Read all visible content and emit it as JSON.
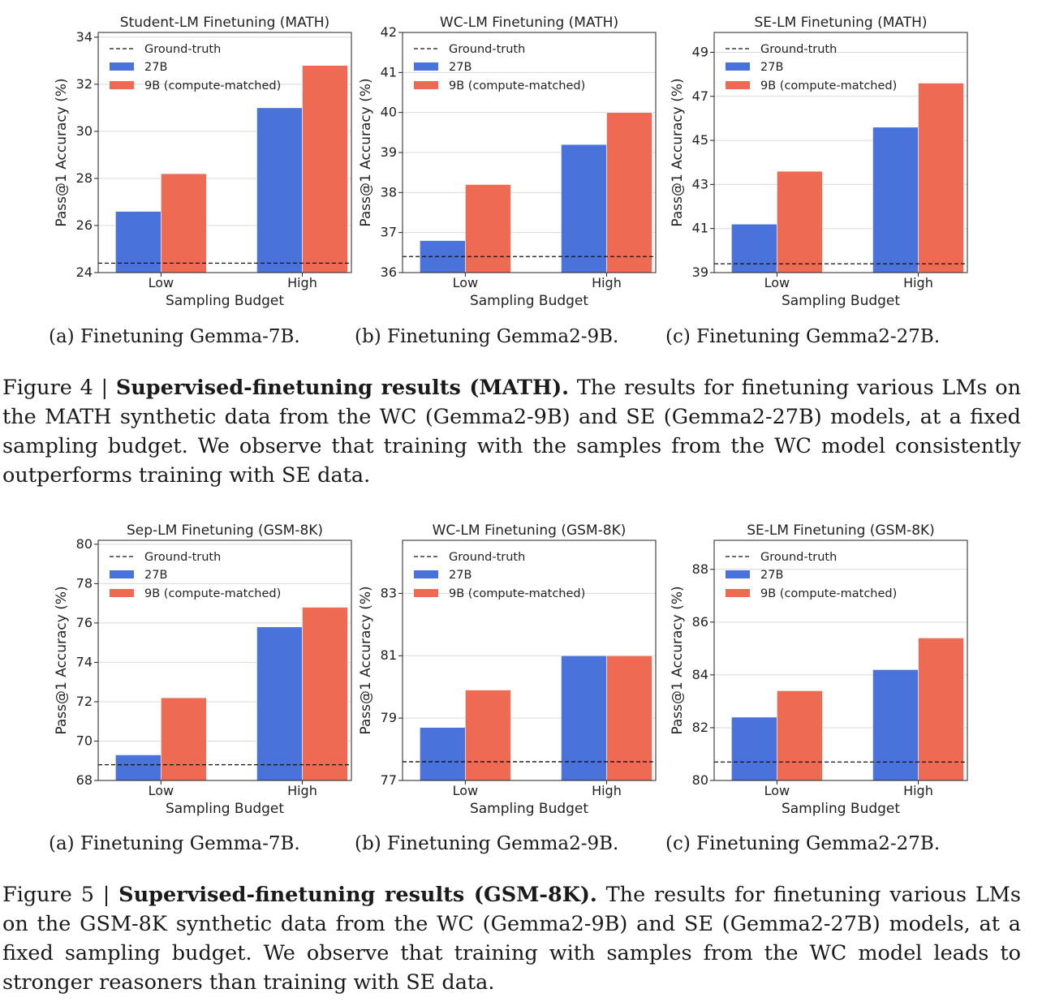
{
  "colors": {
    "series_27b": "#4a72db",
    "series_9b": "#ee6a52",
    "grid": "#d9d9d9",
    "ground_truth": "#111111"
  },
  "legend": {
    "ground_truth": "Ground-truth",
    "s27b": "27B",
    "s9b": "9B (compute-matched)"
  },
  "figures": [
    {
      "caption": {
        "prefix": "Figure 4 | ",
        "bold": "Supervised-finetuning results (MATH).",
        "rest": " The results for finetuning various LMs on the MATH synthetic data from the WC (Gemma2-9B) and SE (Gemma2-27B) models, at a fixed sampling budget.  We observe that training with the samples from the WC model consistently outperforms training with SE data."
      },
      "subcaptions": [
        "(a) Finetuning Gemma-7B.",
        "(b) Finetuning Gemma2-9B.",
        "(c) Finetuning Gemma2-27B."
      ]
    },
    {
      "caption": {
        "prefix": "Figure 5 | ",
        "bold": "Supervised-finetuning results (GSM-8K).",
        "rest": " The results for finetuning various LMs on the GSM-8K synthetic data from the WC (Gemma2-9B) and SE (Gemma2-27B) models, at a fixed sampling budget. We observe that training with samples from the WC model leads to stronger reasoners than training with SE data."
      },
      "subcaptions": [
        "(a) Finetuning Gemma-7B.",
        "(b) Finetuning Gemma2-9B.",
        "(c) Finetuning Gemma2-27B."
      ]
    }
  ],
  "chart_data": [
    {
      "type": "bar",
      "title": "Student-LM Finetuning (MATH)",
      "xlabel": "Sampling Budget",
      "ylabel": "Pass@1 Accuracy (%)",
      "categories": [
        "Low",
        "High"
      ],
      "ylim": [
        24,
        34.2
      ],
      "yticks": [
        24,
        26,
        28,
        30,
        32,
        34
      ],
      "ground_truth": 24.4,
      "series": [
        {
          "name": "27B",
          "values": [
            26.6,
            31.0
          ]
        },
        {
          "name": "9B (compute-matched)",
          "values": [
            28.2,
            32.8
          ]
        }
      ],
      "grid": true,
      "legend": "top-left"
    },
    {
      "type": "bar",
      "title": "WC-LM Finetuning (MATH)",
      "xlabel": "Sampling Budget",
      "ylabel": "Pass@1 Accuracy (%)",
      "categories": [
        "Low",
        "High"
      ],
      "ylim": [
        36,
        42
      ],
      "yticks": [
        36,
        37,
        38,
        39,
        40,
        41,
        42
      ],
      "ground_truth": 36.4,
      "series": [
        {
          "name": "27B",
          "values": [
            36.8,
            39.2
          ]
        },
        {
          "name": "9B (compute-matched)",
          "values": [
            38.2,
            40.0
          ]
        }
      ],
      "grid": true,
      "legend": "top-left"
    },
    {
      "type": "bar",
      "title": "SE-LM Finetuning (MATH)",
      "xlabel": "Sampling Budget",
      "ylabel": "Pass@1 Accuracy (%)",
      "categories": [
        "Low",
        "High"
      ],
      "ylim": [
        39,
        49.9
      ],
      "yticks": [
        39,
        41,
        43,
        45,
        47,
        49
      ],
      "ground_truth": 39.4,
      "series": [
        {
          "name": "27B",
          "values": [
            41.2,
            45.6
          ]
        },
        {
          "name": "9B (compute-matched)",
          "values": [
            43.6,
            47.6
          ]
        }
      ],
      "grid": true,
      "legend": "top-left"
    },
    {
      "type": "bar",
      "title": "Sep-LM Finetuning (GSM-8K)",
      "xlabel": "Sampling Budget",
      "ylabel": "Pass@1 Accuracy (%)",
      "categories": [
        "Low",
        "High"
      ],
      "ylim": [
        68,
        80.2
      ],
      "yticks": [
        68,
        70,
        72,
        74,
        76,
        78,
        80
      ],
      "ground_truth": 68.8,
      "series": [
        {
          "name": "27B",
          "values": [
            69.3,
            75.8
          ]
        },
        {
          "name": "9B (compute-matched)",
          "values": [
            72.2,
            76.8
          ]
        }
      ],
      "grid": true,
      "legend": "top-left"
    },
    {
      "type": "bar",
      "title": "WC-LM Finetuning (GSM-8K)",
      "xlabel": "Sampling Budget",
      "ylabel": "Pass@1 Accuracy (%)",
      "categories": [
        "Low",
        "High"
      ],
      "ylim": [
        77,
        84.7
      ],
      "yticks": [
        77,
        79,
        81,
        83
      ],
      "ground_truth": 77.6,
      "series": [
        {
          "name": "27B",
          "values": [
            78.7,
            81.0
          ]
        },
        {
          "name": "9B (compute-matched)",
          "values": [
            79.9,
            81.0
          ]
        }
      ],
      "grid": true,
      "legend": "top-left"
    },
    {
      "type": "bar",
      "title": "SE-LM Finetuning (GSM-8K)",
      "xlabel": "Sampling Budget",
      "ylabel": "Pass@1 Accuracy (%)",
      "categories": [
        "Low",
        "High"
      ],
      "ylim": [
        80,
        89.1
      ],
      "yticks": [
        80,
        82,
        84,
        86,
        88
      ],
      "ground_truth": 80.7,
      "series": [
        {
          "name": "27B",
          "values": [
            82.4,
            84.2
          ]
        },
        {
          "name": "9B (compute-matched)",
          "values": [
            83.4,
            85.4
          ]
        }
      ],
      "grid": true,
      "legend": "top-left"
    }
  ]
}
